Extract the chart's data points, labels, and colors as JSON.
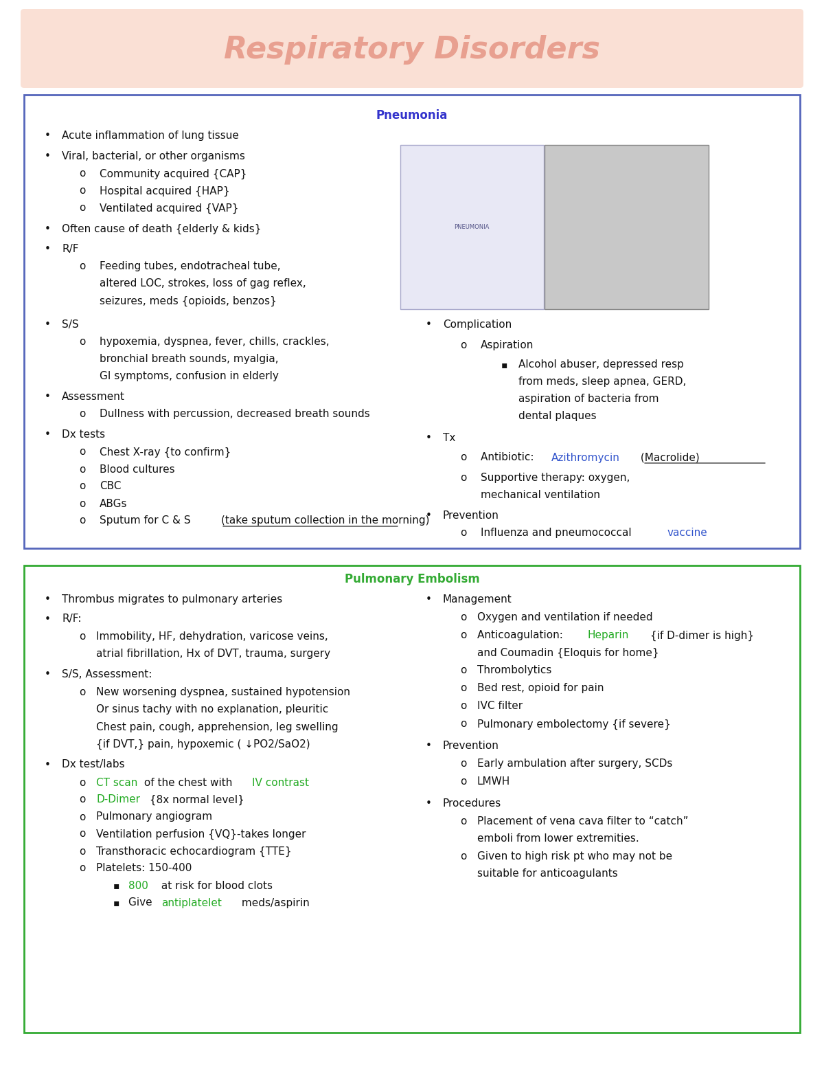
{
  "title": "Respiratory Disorders",
  "title_color": "#E8A090",
  "title_bg": "#FAE0D5",
  "title_fontsize": 32,
  "bg_color": "#FFFFFF",
  "section1_title": "Pneumonia",
  "section1_title_color": "#3333CC",
  "section1_border_color": "#5566BB",
  "section2_title": "Pulmonary Embolism",
  "section2_title_color": "#33AA33",
  "section2_border_color": "#33AA33",
  "text_color": "#111111",
  "blue_color": "#3355CC",
  "green_color": "#22AA22",
  "body_fontsize": 11
}
